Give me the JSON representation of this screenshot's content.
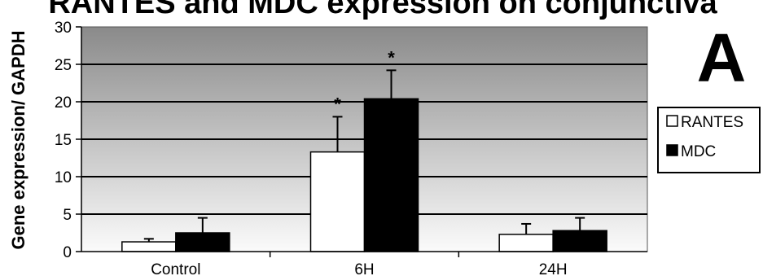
{
  "chart_data": {
    "type": "bar",
    "title": "RANTES and MDC expression on conjunctiva",
    "panel_label": "A",
    "ylabel": "Gene expression/ GAPDH",
    "xlabel": "",
    "ylim": [
      0,
      30
    ],
    "yticks": [
      "0",
      "5",
      "10",
      "15",
      "20",
      "25",
      "30"
    ],
    "categories": [
      "Control",
      "6H",
      "24H"
    ],
    "series": [
      {
        "name": "RANTES",
        "color": "#ffffff",
        "values": [
          1.3,
          13.3,
          2.3
        ],
        "errors": [
          0.4,
          4.7,
          1.4
        ],
        "annotations": [
          "",
          "*",
          ""
        ]
      },
      {
        "name": "MDC",
        "color": "#000000",
        "values": [
          2.5,
          20.4,
          2.8
        ],
        "errors": [
          2.0,
          3.8,
          1.7
        ],
        "annotations": [
          "",
          "*",
          ""
        ]
      }
    ],
    "grid": true,
    "legend_position": "right"
  }
}
